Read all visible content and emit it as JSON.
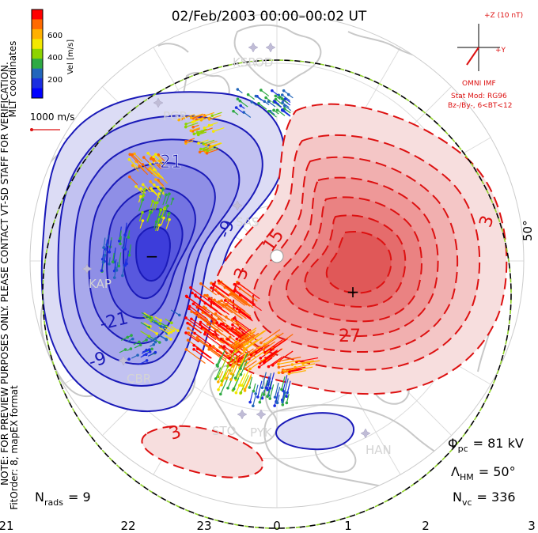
{
  "title": "02/Feb/2003 00:00–00:02 UT",
  "side_notes": {
    "coords": "MLT coordinates",
    "preview": "NOTE: FOR PREVIEW PURPOSES ONLY. PLEASE CONTACT VT-SD STAFF FOR VERIFICATION.",
    "fitorder": "FitOrder: 8, mapEX format"
  },
  "colorbar": {
    "label": "Vel [m/s]",
    "ticks": [
      "600",
      "400",
      "200"
    ],
    "colors": [
      "#ff0000",
      "#ff6a00",
      "#ffb000",
      "#f4e800",
      "#8ed400",
      "#2eaa44",
      "#2266bb",
      "#1a2ee0",
      "#0000ff"
    ]
  },
  "scale_vector": {
    "label": "1000 m/s"
  },
  "imf": {
    "z_label": "+Z (10 nT)",
    "y_label": "+Y",
    "source": "OMNI IMF",
    "model": "Stat Mod: RG96",
    "condition": "Bz-/By-, 6<BT<12"
  },
  "contour_labels": {
    "neg": [
      "-21",
      "-9",
      "-21",
      "-9"
    ],
    "pos": [
      "15",
      "27",
      "3",
      "3",
      "3"
    ]
  },
  "latitude_label": "50°",
  "stations": [
    "KSR",
    "OD",
    "PGR",
    "KAP",
    "SAS",
    "CBR",
    "STO",
    "PYK",
    "HAN"
  ],
  "extremes": {
    "min_symbol": "−",
    "max_symbol": "+"
  },
  "stats": {
    "phi_label": "Φ",
    "phi_sub": "pc",
    "phi_value": "= 81 kV",
    "lambda_label": "Λ",
    "lambda_sub": "HM",
    "lambda_value": "= 50°",
    "nvc_label": "N",
    "nvc_sub": "vc",
    "nvc_value": "= 336",
    "nrads_label": "N",
    "nrads_sub": "rads",
    "nrads_value": "= 9"
  },
  "mlt_axis": [
    "21",
    "22",
    "23",
    "0",
    "1",
    "2",
    "3"
  ],
  "colors": {
    "negative_fill": "#3a3ae8",
    "positive_fill": "#ee3a3a",
    "negative_line": "#1a1ab8",
    "positive_line": "#dd1111",
    "map_gray": "#c8c8c8",
    "boundary": "#8fd12a"
  }
}
